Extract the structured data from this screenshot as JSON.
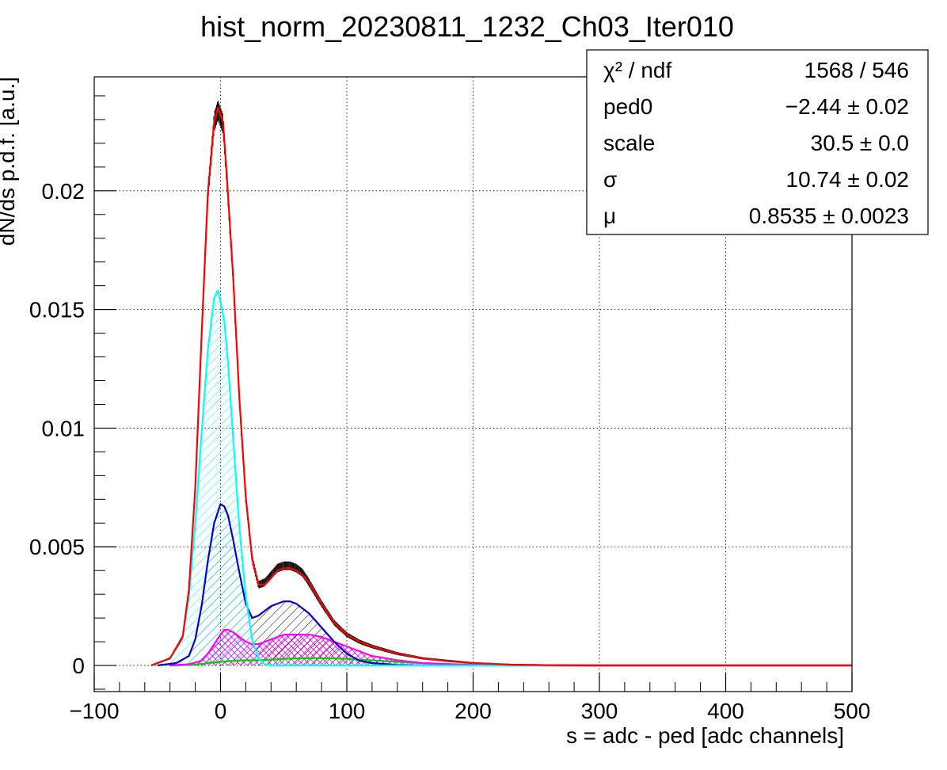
{
  "chart_data": {
    "type": "line",
    "title": "hist_norm_20230811_1232_Ch03_Iter010",
    "xlabel": "s = adc - ped [adc channels]",
    "ylabel": "dN/ds p.d.f. [a.u.]",
    "xlim": [
      -100,
      500
    ],
    "ylim": [
      -0.0011,
      0.0248
    ],
    "grid": true,
    "x_ticks": [
      -100,
      0,
      100,
      200,
      300,
      400,
      500
    ],
    "x_tick_labels": [
      "−100",
      "0",
      "100",
      "200",
      "300",
      "400",
      "500"
    ],
    "y_ticks": [
      0,
      0.005,
      0.01,
      0.015,
      0.02
    ],
    "y_tick_labels": [
      "0",
      "0.005",
      "0.01",
      "0.015",
      "0.02"
    ],
    "legend_position": "top-right",
    "stats": [
      {
        "label": "χ² / ndf",
        "value": "1568 / 546"
      },
      {
        "label": "ped0",
        "value": "−2.44 ± 0.02"
      },
      {
        "label": "scale",
        "value": "30.5 ± 0.0"
      },
      {
        "label": "σ",
        "value": "10.74 ± 0.02"
      },
      {
        "label": "μ",
        "value": "0.8535 ± 0.0023"
      }
    ],
    "series": [
      {
        "color": "#000000",
        "style": "histogram",
        "x": [
          -55,
          -40,
          -30,
          -25,
          -20,
          -15,
          -10,
          -5,
          -2,
          2,
          5,
          10,
          15,
          20,
          25,
          30,
          35,
          40,
          45,
          50,
          55,
          60,
          65,
          70,
          80,
          90,
          100,
          110,
          120,
          140,
          160,
          180,
          200,
          230,
          260,
          300,
          500
        ],
        "y": [
          0,
          0.0003,
          0.0012,
          0.0032,
          0.0075,
          0.0139,
          0.0199,
          0.0229,
          0.0234,
          0.0228,
          0.0205,
          0.0163,
          0.0111,
          0.007,
          0.0045,
          0.0034,
          0.0035,
          0.0038,
          0.0041,
          0.0042,
          0.0042,
          0.0041,
          0.0039,
          0.0035,
          0.0026,
          0.0018,
          0.0013,
          0.001,
          0.0008,
          0.0005,
          0.0003,
          0.0002,
          0.0001,
          3e-05,
          1e-05,
          0,
          0
        ]
      },
      {
        "color": "#ff0000",
        "style": "line",
        "x": [
          -55,
          -40,
          -30,
          -25,
          -20,
          -15,
          -10,
          -5,
          -2,
          2,
          5,
          10,
          15,
          20,
          25,
          30,
          35,
          40,
          45,
          50,
          55,
          60,
          65,
          70,
          80,
          90,
          100,
          110,
          120,
          140,
          160,
          180,
          200,
          230,
          260,
          300,
          500
        ],
        "y": [
          0,
          0.0003,
          0.0012,
          0.0032,
          0.0075,
          0.0139,
          0.0199,
          0.0229,
          0.0235,
          0.0229,
          0.0206,
          0.0164,
          0.0112,
          0.0071,
          0.0045,
          0.0034,
          0.0034,
          0.0037,
          0.004,
          0.0041,
          0.0041,
          0.004,
          0.0038,
          0.0035,
          0.0026,
          0.0018,
          0.0013,
          0.001,
          0.0008,
          0.0005,
          0.0003,
          0.00018,
          0.0001,
          3e-05,
          1e-05,
          0,
          0
        ]
      },
      {
        "color": "#00ffff",
        "style": "filled-hatched",
        "x": [
          -55,
          -40,
          -30,
          -25,
          -20,
          -15,
          -10,
          -5,
          -2,
          0,
          3,
          6,
          10,
          15,
          20,
          25,
          30,
          35,
          40,
          500
        ],
        "y": [
          0,
          0.0003,
          0.0012,
          0.0029,
          0.006,
          0.0098,
          0.0133,
          0.0155,
          0.0158,
          0.0153,
          0.0145,
          0.0127,
          0.0096,
          0.0058,
          0.0029,
          0.0011,
          0.0003,
          5e-05,
          0,
          0
        ]
      },
      {
        "color": "#0000cc",
        "style": "filled-hatched",
        "x": [
          -50,
          -35,
          -25,
          -20,
          -15,
          -10,
          -5,
          0,
          3,
          6,
          10,
          15,
          20,
          25,
          30,
          35,
          40,
          45,
          50,
          55,
          60,
          65,
          70,
          80,
          90,
          100,
          110,
          120,
          140,
          160,
          200,
          500
        ],
        "y": [
          0,
          0.0001,
          0.0004,
          0.0011,
          0.0025,
          0.0044,
          0.006,
          0.0068,
          0.0067,
          0.0063,
          0.0053,
          0.0039,
          0.0026,
          0.002,
          0.0021,
          0.0023,
          0.0025,
          0.0026,
          0.0027,
          0.0027,
          0.0026,
          0.0024,
          0.0022,
          0.0016,
          0.001,
          0.0005,
          0.0002,
          0.0001,
          2e-05,
          0,
          0,
          0
        ]
      },
      {
        "color": "#ff00ff",
        "style": "filled-hatched",
        "x": [
          -40,
          -25,
          -15,
          -10,
          -5,
          0,
          3,
          6,
          10,
          15,
          20,
          25,
          30,
          35,
          40,
          45,
          50,
          55,
          60,
          65,
          70,
          80,
          90,
          100,
          110,
          120,
          140,
          160,
          180,
          200,
          230,
          260,
          500
        ],
        "y": [
          0,
          5e-05,
          0.0002,
          0.0005,
          0.0009,
          0.0013,
          0.0015,
          0.0015,
          0.0014,
          0.0012,
          0.001,
          0.0009,
          0.0009,
          0.001,
          0.0011,
          0.0012,
          0.0013,
          0.0013,
          0.0013,
          0.0013,
          0.0013,
          0.0012,
          0.001,
          0.0008,
          0.0006,
          0.0004,
          0.00022,
          0.0001,
          5e-05,
          2e-05,
          1e-05,
          0,
          0
        ]
      },
      {
        "color": "#00cc00",
        "style": "filled-hatched",
        "x": [
          -40,
          -20,
          -10,
          0,
          10,
          20,
          30,
          40,
          50,
          60,
          70,
          80,
          90,
          100,
          110,
          120,
          140,
          160,
          180,
          200,
          230,
          260,
          500
        ],
        "y": [
          0,
          3e-05,
          0.0001,
          0.00015,
          0.0002,
          0.00022,
          0.00022,
          0.00025,
          0.00028,
          0.0003,
          0.00031,
          0.00031,
          0.0003,
          0.00028,
          0.00025,
          0.00022,
          0.00015,
          0.0001,
          6e-05,
          3e-05,
          1e-05,
          0,
          0
        ]
      }
    ]
  }
}
